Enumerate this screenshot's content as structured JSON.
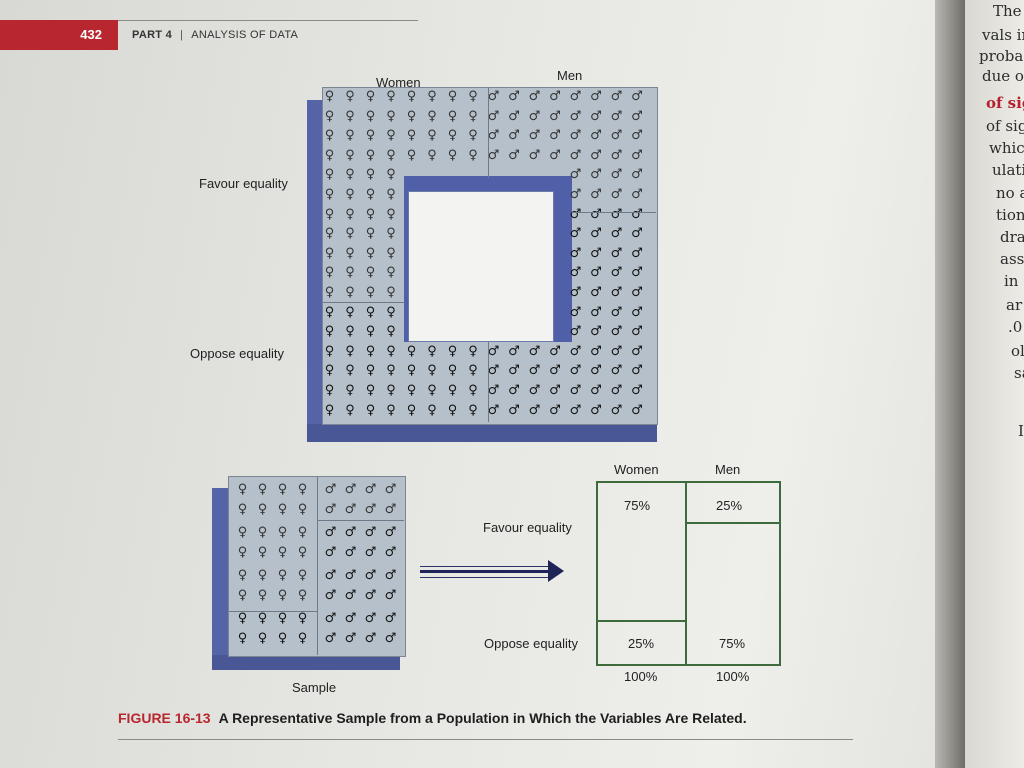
{
  "header": {
    "page_number": "432",
    "part": "PART 4",
    "section": "ANALYSIS OF DATA"
  },
  "population": {
    "women_label": "Women",
    "men_label": "Men",
    "favour_label": "Favour equality",
    "oppose_label": "Oppose equality"
  },
  "sample": {
    "label": "Sample"
  },
  "table": {
    "women_label": "Women",
    "men_label": "Men",
    "favour_label": "Favour equality",
    "oppose_label": "Oppose equality",
    "women_favour": "75%",
    "men_favour": "25%",
    "women_oppose": "25%",
    "men_oppose": "75%",
    "women_total": "100%",
    "men_total": "100%"
  },
  "caption": {
    "figure_number": "FIGURE 16-13",
    "title": "A Representative Sample from a Population in Which the Variables Are Related."
  },
  "facing_page": {
    "lines": [
      "The",
      "vals in",
      "proba",
      "due o",
      "of sig",
      "of sig",
      "whic",
      "ulati",
      "no a",
      "tion",
      "dra",
      "ass",
      "in",
      "ar",
      ".0",
      "ol",
      "sa",
      "I"
    ]
  },
  "symbols": {
    "female_icon": "♀",
    "male_icon": "♂"
  },
  "colors": {
    "accent_red": "#b8272f",
    "grid_blue": "#5564a6",
    "table_green": "#3d6b3d"
  }
}
